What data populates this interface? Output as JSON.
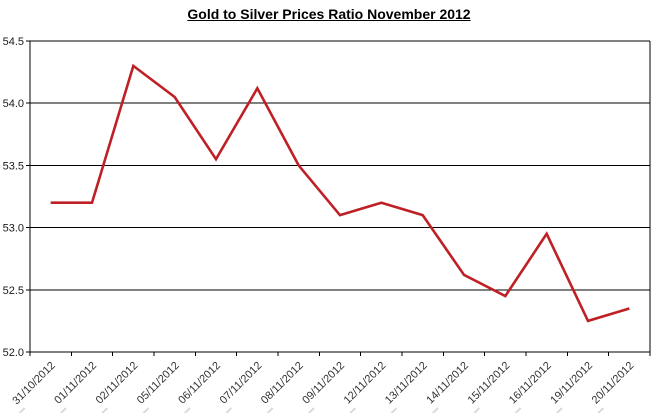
{
  "chart_data": {
    "type": "line",
    "title": "Gold to Silver Prices Ratio November 2012",
    "categories": [
      "31/10/2012",
      "01/11/2012",
      "02/11/2012",
      "05/11/2012",
      "06/11/2012",
      "07/11/2012",
      "08/11/2012",
      "09/11/2012",
      "12/11/2012",
      "13/11/2012",
      "14/11/2012",
      "15/11/2012",
      "16/11/2012",
      "19/11/2012",
      "20/11/2012"
    ],
    "values": [
      53.2,
      53.2,
      54.3,
      54.05,
      53.55,
      54.12,
      53.5,
      53.1,
      53.2,
      53.1,
      52.62,
      52.45,
      52.95,
      52.25,
      52.35
    ],
    "xlabel": "",
    "ylabel": "",
    "ylim": [
      52.0,
      54.5
    ],
    "ytick_step": 0.5,
    "y_tick_labels": [
      "52.0",
      "52.5",
      "53.0",
      "53.5",
      "54.0",
      "54.5"
    ],
    "grid": true,
    "legend_position": "none",
    "line_color": "#be2026",
    "axis_color": "#000000"
  }
}
